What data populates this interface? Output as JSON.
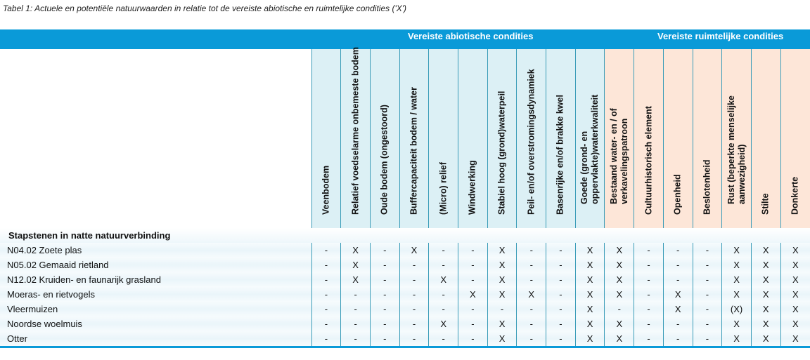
{
  "caption": "Tabel 1: Actuele en potentiële natuurwaarden in relatie tot de vereiste abiotische en ruimtelijke condities ('X')",
  "groups": {
    "abiotic": "Vereiste abiotische condities",
    "spatial": "Vereiste ruimtelijke condities"
  },
  "colors": {
    "band": "#0a9ad8",
    "abiotic": "#dcf0f5",
    "spatial": "#fde6d8"
  },
  "columns": [
    {
      "label": "Veenbodem",
      "group": "abiotic"
    },
    {
      "label": "Relatief voedselarme onbemeste bodem",
      "group": "abiotic"
    },
    {
      "label": "Oude bodem (ongestoord)",
      "group": "abiotic"
    },
    {
      "label": "Buffercapaciteit bodem / water",
      "group": "abiotic"
    },
    {
      "label": "(Micro) relief",
      "group": "abiotic"
    },
    {
      "label": "Windwerking",
      "group": "abiotic"
    },
    {
      "label": "Stabiel hoog (grond)waterpeil",
      "group": "abiotic"
    },
    {
      "label": "Peil- en/of overstromingsdynamiek",
      "group": "abiotic"
    },
    {
      "label": "Basenrijke en/of brakke kwel",
      "group": "abiotic"
    },
    {
      "label": "Goede (grond- en oppervlakte)waterkwaliteit",
      "group": "abiotic"
    },
    {
      "label": "Bestaand water- en / of verkavelingspatroon",
      "group": "spatial"
    },
    {
      "label": "Cultuurhistorisch element",
      "group": "spatial"
    },
    {
      "label": "Openheid",
      "group": "spatial"
    },
    {
      "label": "Beslotenheid",
      "group": "spatial"
    },
    {
      "label": "Rust (beperkte menselijke aanwezigheid)",
      "group": "spatial"
    },
    {
      "label": "Stilte",
      "group": "spatial"
    },
    {
      "label": "Donkerte",
      "group": "spatial"
    }
  ],
  "section": "Stapstenen in natte natuurverbinding",
  "rows": [
    {
      "name": "N04.02 Zoete plas",
      "values": [
        "-",
        "X",
        "-",
        "X",
        "-",
        "-",
        "X",
        "-",
        "-",
        "X",
        "X",
        "-",
        "-",
        "-",
        "X",
        "X",
        "X"
      ]
    },
    {
      "name": "N05.02 Gemaaid rietland",
      "values": [
        "-",
        "X",
        "-",
        "-",
        "-",
        "-",
        "X",
        "-",
        "-",
        "X",
        "X",
        "-",
        "-",
        "-",
        "X",
        "X",
        "X"
      ]
    },
    {
      "name": "N12.02 Kruiden- en faunarijk grasland",
      "values": [
        "-",
        "X",
        "-",
        "-",
        "X",
        "-",
        "X",
        "-",
        "-",
        "X",
        "X",
        "-",
        "-",
        "-",
        "X",
        "X",
        "X"
      ]
    },
    {
      "name": "Moeras- en rietvogels",
      "values": [
        "-",
        "-",
        "-",
        "-",
        "-",
        "X",
        "X",
        "X",
        "-",
        "X",
        "X",
        "-",
        "X",
        "-",
        "X",
        "X",
        "X"
      ]
    },
    {
      "name": "Vleermuizen",
      "values": [
        "-",
        "-",
        "-",
        "-",
        "-",
        "-",
        "-",
        "-",
        "-",
        "X",
        "-",
        "-",
        "X",
        "-",
        "(X)",
        "X",
        "X"
      ]
    },
    {
      "name": "Noordse woelmuis",
      "values": [
        "-",
        "-",
        "-",
        "-",
        "X",
        "-",
        "X",
        "-",
        "-",
        "X",
        "X",
        "-",
        "-",
        "-",
        "X",
        "X",
        "X"
      ]
    },
    {
      "name": "Otter",
      "values": [
        "-",
        "-",
        "-",
        "-",
        "-",
        "-",
        "X",
        "-",
        "-",
        "X",
        "X",
        "-",
        "-",
        "-",
        "X",
        "X",
        "X"
      ]
    }
  ]
}
